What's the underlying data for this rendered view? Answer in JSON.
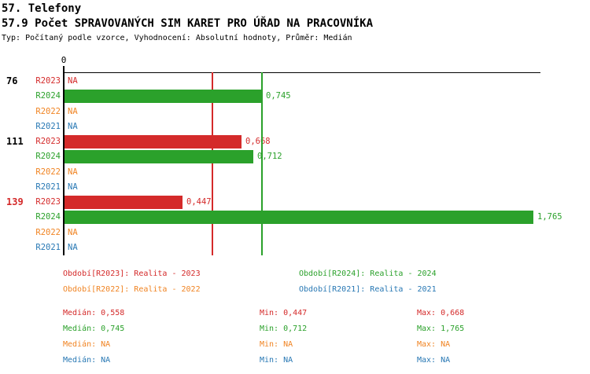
{
  "header": {
    "title_line1": "57. Telefony",
    "title_line2": "57.9 Počet SPRAVOVANÝCH SIM KARET PRO ÚŘAD NA PRACOVNÍKA",
    "subtitle": "Typ: Počítaný podle vzorce, Vyhodnocení: Absolutní hodnoty, Průměr: Medián"
  },
  "palette": {
    "R2023": "#d42a2a",
    "R2024": "#2ba12b",
    "R2022": "#f08423",
    "R2021": "#2878b4",
    "axis": "#000000",
    "group_label_default": "#000000",
    "group_label_alert": "#d42a2a"
  },
  "chart_data": {
    "type": "bar",
    "orientation": "horizontal",
    "x_axis": {
      "zero_label": "0",
      "xlim": [
        0,
        1.8
      ],
      "grid": false
    },
    "series_order": [
      "R2023",
      "R2024",
      "R2022",
      "R2021"
    ],
    "groups": [
      {
        "label": "76",
        "label_color": "default",
        "bars": [
          {
            "series": "R2023",
            "value": null,
            "display": "NA"
          },
          {
            "series": "R2024",
            "value": 0.745,
            "display": "0,745"
          },
          {
            "series": "R2022",
            "value": null,
            "display": "NA"
          },
          {
            "series": "R2021",
            "value": null,
            "display": "NA"
          }
        ]
      },
      {
        "label": "111",
        "label_color": "default",
        "bars": [
          {
            "series": "R2023",
            "value": 0.668,
            "display": "0,668"
          },
          {
            "series": "R2024",
            "value": 0.712,
            "display": "0,712"
          },
          {
            "series": "R2022",
            "value": null,
            "display": "NA"
          },
          {
            "series": "R2021",
            "value": null,
            "display": "NA"
          }
        ]
      },
      {
        "label": "139",
        "label_color": "alert",
        "bars": [
          {
            "series": "R2023",
            "value": 0.447,
            "display": "0,447"
          },
          {
            "series": "R2024",
            "value": 1.765,
            "display": "1,765"
          },
          {
            "series": "R2022",
            "value": null,
            "display": "NA"
          },
          {
            "series": "R2021",
            "value": null,
            "display": "NA"
          }
        ]
      }
    ],
    "reference_lines": [
      {
        "series": "R2023",
        "value": 0.558
      },
      {
        "series": "R2024",
        "value": 0.745
      }
    ],
    "summary": [
      {
        "series": "R2023",
        "median": 0.558,
        "min": 0.447,
        "max": 0.668
      },
      {
        "series": "R2024",
        "median": 0.745,
        "min": 0.712,
        "max": 1.765
      },
      {
        "series": "R2022",
        "median": null,
        "min": null,
        "max": null
      },
      {
        "series": "R2021",
        "median": null,
        "min": null,
        "max": null
      }
    ]
  },
  "legend": {
    "items": [
      {
        "series": "R2023",
        "label": "Období[R2023]: Realita - 2023"
      },
      {
        "series": "R2024",
        "label": "Období[R2024]: Realita - 2024"
      },
      {
        "series": "R2022",
        "label": "Období[R2022]: Realita - 2022"
      },
      {
        "series": "R2021",
        "label": "Období[R2021]: Realita - 2021"
      }
    ]
  },
  "stats": {
    "rows": [
      {
        "series": "R2023",
        "cells": [
          "Medián: 0,558",
          "Min: 0,447",
          "Max: 0,668"
        ]
      },
      {
        "series": "R2024",
        "cells": [
          "Medián: 0,745",
          "Min: 0,712",
          "Max: 1,765"
        ]
      },
      {
        "series": "R2022",
        "cells": [
          "Medián: NA",
          "Min: NA",
          "Max: NA"
        ]
      },
      {
        "series": "R2021",
        "cells": [
          "Medián: NA",
          "Min: NA",
          "Max: NA"
        ]
      }
    ]
  }
}
